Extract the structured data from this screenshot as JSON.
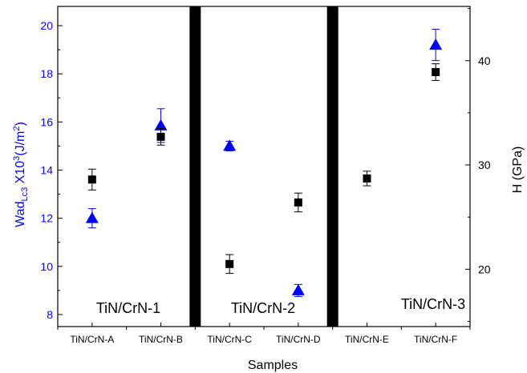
{
  "chart_data": {
    "type": "scatter",
    "categories": [
      "TiN/CrN-A",
      "TiN/CrN-B",
      "TiN/CrN-C",
      "TiN/CrN-D",
      "TiN/CrN-E",
      "TiN/CrN-F"
    ],
    "xlabel": "Samples",
    "ylabel_left": {
      "main": "Wad",
      "sub": "Lc3",
      "rest": " X10",
      "sup3": "3",
      "unit_pre": "(J/m",
      "sup2": "2",
      "unit_post": ")"
    },
    "ylabel_right": "H (GPa)",
    "left_axis": {
      "ylim": [
        7.5,
        20.8
      ],
      "ticks": [
        8,
        10,
        12,
        14,
        16,
        18,
        20
      ],
      "color": "#0000ff"
    },
    "right_axis": {
      "ylim": [
        14.5,
        45.2
      ],
      "ticks": [
        20,
        30,
        40
      ],
      "color": "#000000"
    },
    "series": [
      {
        "name": "Wad",
        "axis": "left",
        "marker": "triangle",
        "color": "#0000ff",
        "values": [
          12.0,
          15.85,
          15.0,
          9.0,
          null,
          19.2
        ],
        "errors": [
          0.4,
          0.7,
          0.2,
          0.25,
          null,
          0.65
        ]
      },
      {
        "name": "H",
        "axis": "right",
        "marker": "square",
        "color": "#000000",
        "values": [
          28.6,
          32.7,
          20.5,
          26.4,
          28.7,
          38.9
        ],
        "errors": [
          1.0,
          0.8,
          0.9,
          0.9,
          0.7,
          0.8
        ]
      }
    ],
    "group_labels": [
      "TiN/CrN-1",
      "TiN/CrN-2",
      "TiN/CrN-3"
    ],
    "grid": false,
    "separators": "thick black vertical bars between groups"
  }
}
